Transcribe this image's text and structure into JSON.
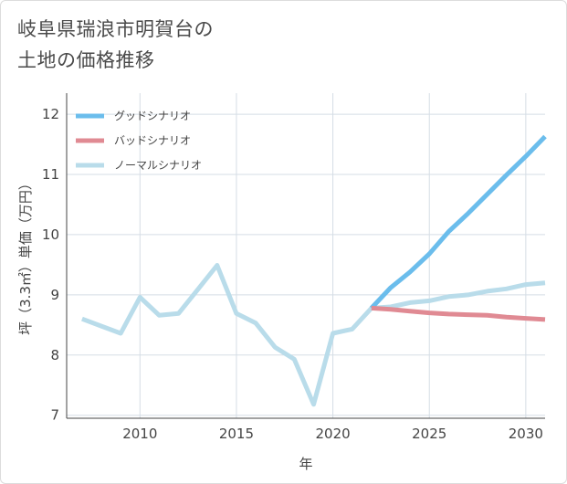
{
  "title_lines": [
    "岐阜県瑞浪市明賀台の",
    "土地の価格推移"
  ],
  "colors": {
    "good": "#6bbdec",
    "bad": "#e08a93",
    "normal": "#b9dcea",
    "grid": "#d5dde5",
    "axis": "#444444"
  },
  "chart_data": {
    "type": "line",
    "title": "岐阜県瑞浪市明賀台の土地の価格推移",
    "xlabel": "年",
    "ylabel": "坪（3.3㎡）単価（万円）",
    "xlim": [
      2006.2,
      2031
    ],
    "ylim": [
      6.95,
      12.35
    ],
    "xticks": [
      2010,
      2015,
      2020,
      2025,
      2030
    ],
    "yticks": [
      7,
      8,
      9,
      10,
      11,
      12
    ],
    "legend": [
      "グッドシナリオ",
      "バッドシナリオ",
      "ノーマルシナリオ"
    ],
    "legend_position": "top-left",
    "series": [
      {
        "name": "ノーマルシナリオ",
        "key": "normal",
        "x": [
          2007,
          2008,
          2009,
          2010,
          2011,
          2012,
          2013,
          2014,
          2015,
          2016,
          2017,
          2018,
          2019,
          2020,
          2021,
          2022,
          2023,
          2024,
          2025,
          2026,
          2027,
          2028,
          2029,
          2030,
          2031
        ],
        "values": [
          8.6,
          8.48,
          8.36,
          8.96,
          8.66,
          8.69,
          9.09,
          9.49,
          8.69,
          8.53,
          8.13,
          7.93,
          7.18,
          8.36,
          8.43,
          8.78,
          8.8,
          8.87,
          8.9,
          8.97,
          9.0,
          9.06,
          9.1,
          9.17,
          9.2
        ]
      },
      {
        "name": "グッドシナリオ",
        "key": "good",
        "x": [
          2022,
          2023,
          2024,
          2025,
          2026,
          2027,
          2028,
          2029,
          2030,
          2031
        ],
        "values": [
          8.78,
          9.12,
          9.38,
          9.68,
          10.05,
          10.35,
          10.67,
          10.99,
          11.3,
          11.63
        ]
      },
      {
        "name": "バッドシナリオ",
        "key": "bad",
        "x": [
          2022,
          2023,
          2024,
          2025,
          2026,
          2027,
          2028,
          2029,
          2030,
          2031
        ],
        "values": [
          8.78,
          8.76,
          8.73,
          8.7,
          8.68,
          8.67,
          8.66,
          8.63,
          8.61,
          8.59
        ]
      }
    ]
  }
}
